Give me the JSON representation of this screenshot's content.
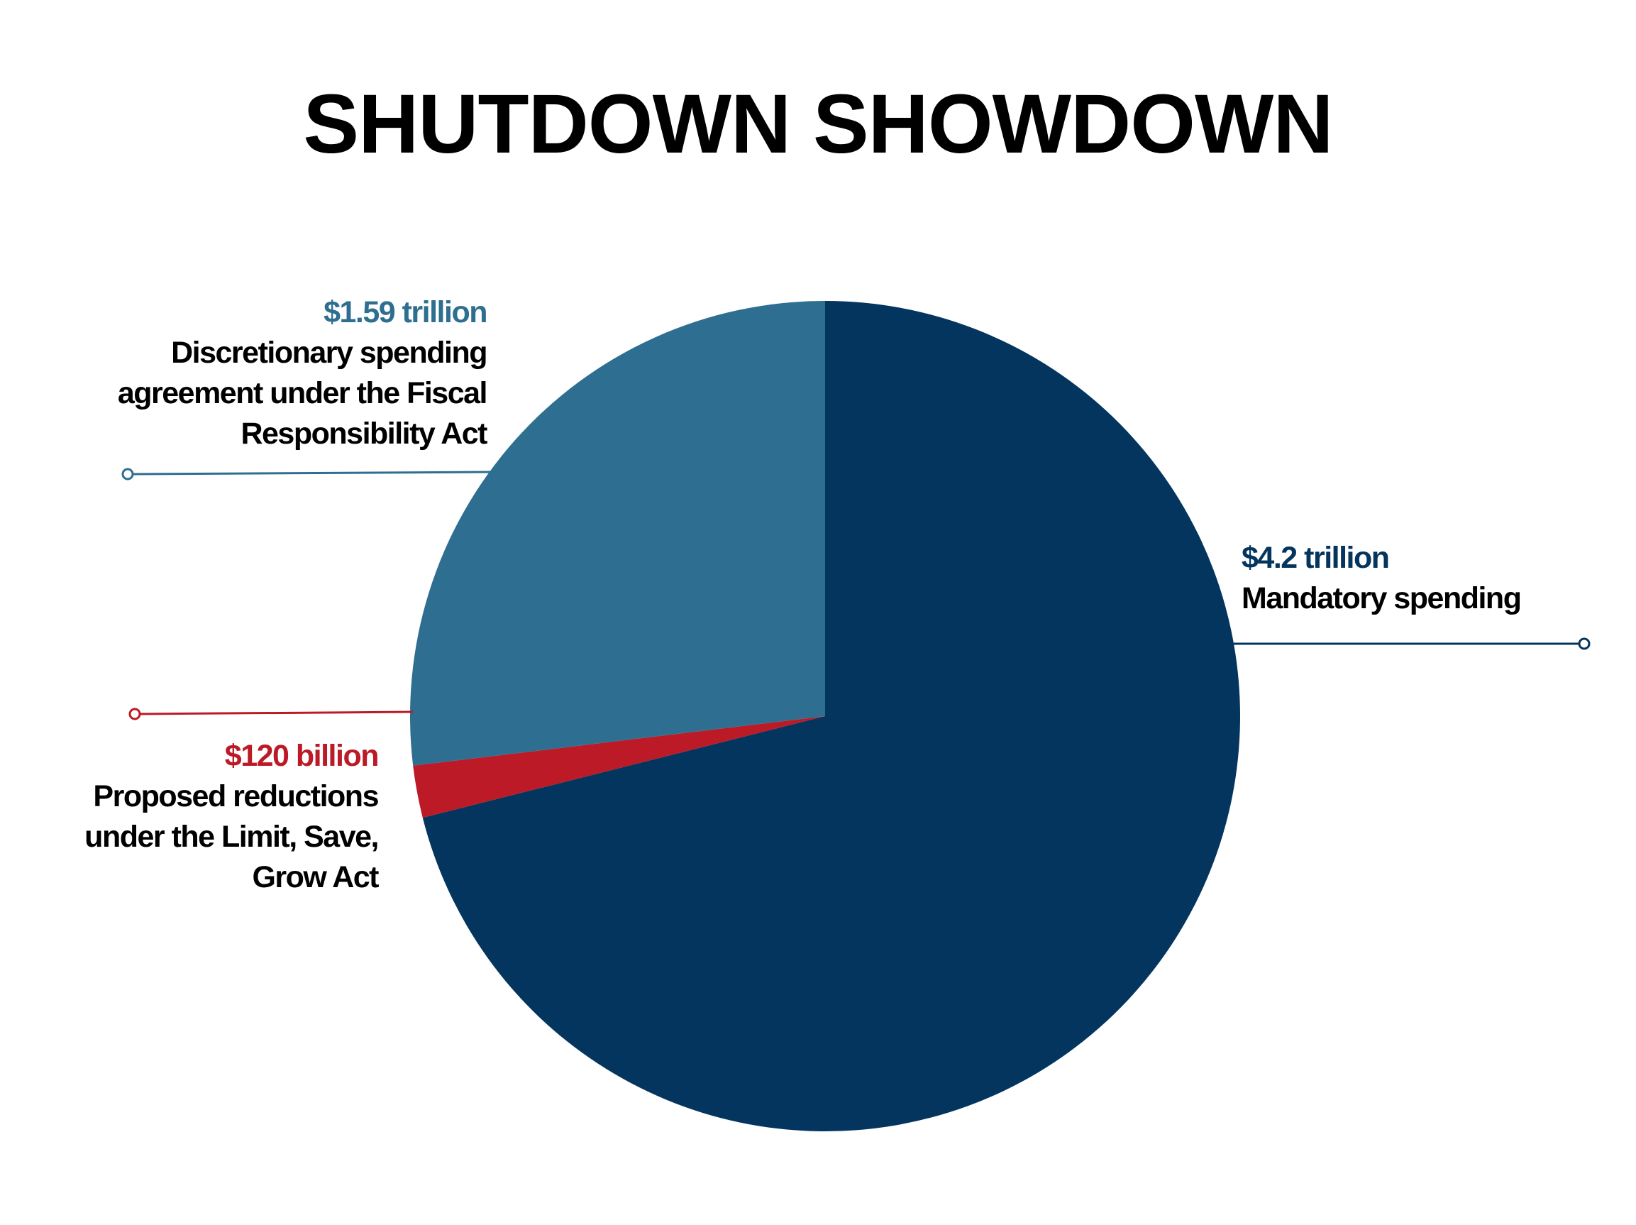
{
  "chart_data": {
    "type": "pie",
    "title": "SHUTDOWN SHOWDOWN",
    "categories": [
      "Mandatory spending",
      "Proposed reductions under the Limit, Save, Grow Act",
      "Discretionary spending agreement under the Fiscal Responsibility Act"
    ],
    "values": [
      4200000000000,
      120000000000,
      1590000000000
    ],
    "value_labels": [
      "$4.2 trillion",
      "$120 billion",
      "$1.59 trillion"
    ],
    "colors": [
      "#03355e",
      "#bb1a26",
      "#2e6e90"
    ]
  }
}
